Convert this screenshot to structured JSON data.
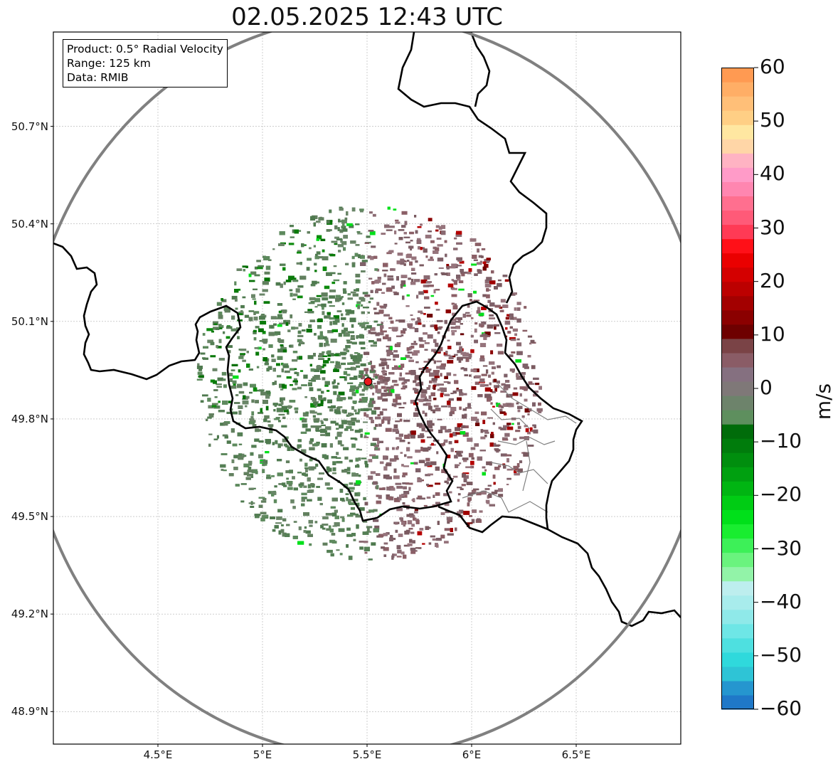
{
  "title": "02.05.2025 12:43 UTC",
  "info_box": {
    "product": "Product: 0.5° Radial Velocity",
    "range": "Range: 125 km",
    "data": "Data: RMIB"
  },
  "map": {
    "lon_range": [
      4.0,
      7.0
    ],
    "lat_range": [
      48.8,
      50.99
    ],
    "radar_site": {
      "lon": 5.505,
      "lat": 49.915
    },
    "lat_ticks": [
      "50.7°N",
      "50.4°N",
      "50.1°N",
      "49.8°N",
      "49.5°N",
      "49.2°N",
      "48.9°N"
    ],
    "lat_tick_values": [
      50.7,
      50.4,
      50.1,
      49.8,
      49.5,
      49.2,
      48.9
    ],
    "lon_ticks": [
      "4.5°E",
      "5°E",
      "5.5°E",
      "6°E",
      "6.5°E"
    ],
    "lon_tick_values": [
      4.5,
      5.0,
      5.5,
      6.0,
      6.5
    ],
    "gridlines": true,
    "range_ring_color": "#808080",
    "border_color": "#000000",
    "radar_site_color": "#e8191e"
  },
  "colorbar": {
    "label": "m/s",
    "ticks": [
      "60",
      "50",
      "40",
      "30",
      "20",
      "10",
      "0",
      "−10",
      "−20",
      "−30",
      "−40",
      "−50",
      "−60"
    ],
    "tick_values": [
      60,
      50,
      40,
      30,
      20,
      10,
      0,
      -10,
      -20,
      -30,
      -40,
      -50,
      -60
    ],
    "range": [
      -60,
      60
    ],
    "colors_low_to_high": [
      "#1f78c8",
      "#2596cf",
      "#2ec4d6",
      "#2fd9dc",
      "#4ee0e0",
      "#6ee6e6",
      "#8fe9e9",
      "#a8ecec",
      "#bdeeee",
      "#92f3a8",
      "#6af37e",
      "#3df058",
      "#19ed30",
      "#00e01a",
      "#00cc14",
      "#00b512",
      "#00a010",
      "#008e0e",
      "#007c0c",
      "#006c0a",
      "#5e8f5e",
      "#6d836b",
      "#7f7878",
      "#857080",
      "#8a5c66",
      "#7a4346",
      "#6e0000",
      "#8b0000",
      "#a30000",
      "#bc0000",
      "#d40000",
      "#ea0000",
      "#ff1018",
      "#ff3a55",
      "#ff5a78",
      "#ff6f8f",
      "#ff86b0",
      "#ff9bc8",
      "#ffb3c3",
      "#ffd6a7",
      "#ffe7a1",
      "#ffcf85",
      "#ffbf78",
      "#ffae66",
      "#ff9a52"
    ]
  }
}
